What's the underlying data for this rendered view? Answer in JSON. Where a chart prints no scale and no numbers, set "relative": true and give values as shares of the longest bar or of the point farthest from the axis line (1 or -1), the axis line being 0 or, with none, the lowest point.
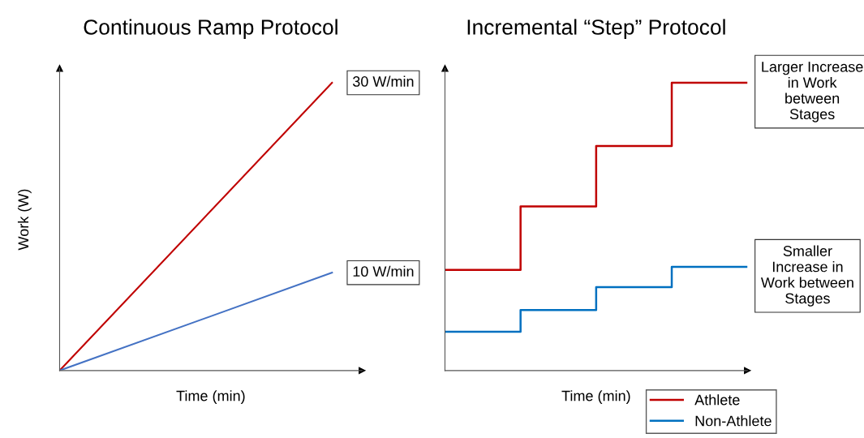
{
  "chart_data": [
    {
      "type": "line",
      "title": "Continuous Ramp Protocol",
      "xlabel": "Time (min)",
      "ylabel": "Work (W)",
      "relative": true,
      "categories": [
        null,
        null
      ],
      "grid": false,
      "legend": false,
      "series": [
        {
          "color": "#c00000",
          "values": [
            0,
            1
          ]
        },
        {
          "color": "#4472c4",
          "values": [
            0,
            0.34
          ]
        }
      ],
      "annotations": [
        "30 W/min",
        "10 W/min"
      ]
    },
    {
      "type": "step",
      "title": "Incremental “Step” Protocol",
      "xlabel": "Time (min)",
      "relative": true,
      "categories": [
        null,
        null,
        null,
        null,
        null
      ],
      "grid": false,
      "legend": "bottom right",
      "series": [
        {
          "name": "Athlete",
          "color": "#c00000",
          "values": [
            0.35,
            0.57,
            0.78,
            1,
            1
          ]
        },
        {
          "name": "Non-Athlete",
          "color": "#0070c0",
          "values": [
            0.135,
            0.21,
            0.29,
            0.36,
            0.36
          ]
        }
      ],
      "annotations": [
        "Larger Increase\nin Work\nbetween\nStages",
        "Smaller\nIncrease in\nWork between\nStages"
      ]
    }
  ]
}
